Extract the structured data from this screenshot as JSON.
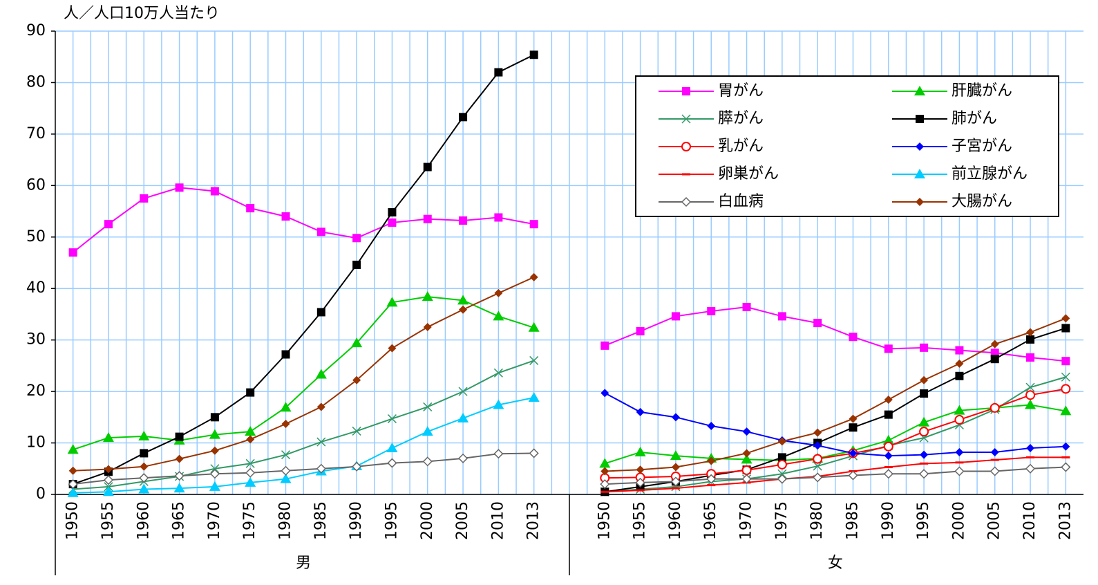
{
  "chart_data": {
    "type": "line",
    "ylabel": "人／人口10万人当たり",
    "groups": [
      "男",
      "女"
    ],
    "categories": [
      "1950",
      "1955",
      "1960",
      "1965",
      "1970",
      "1975",
      "1980",
      "1985",
      "1990",
      "1995",
      "2000",
      "2005",
      "2010",
      "2013"
    ],
    "ylim": [
      0,
      90
    ],
    "yticks": [
      0,
      10,
      20,
      30,
      40,
      50,
      60,
      70,
      80,
      90
    ],
    "grid": true,
    "legend": "top-right",
    "series": [
      {
        "name": "胃がん",
        "color": "#ff00ff",
        "marker": "square",
        "values": [
          [
            47,
            52.5,
            57.5,
            59.6,
            58.9,
            55.6,
            54,
            51,
            49.8,
            52.8,
            53.5,
            53.2,
            53.8,
            52.5
          ],
          [
            28.9,
            31.7,
            34.6,
            35.6,
            36.4,
            34.6,
            33.3,
            30.6,
            28.3,
            28.5,
            28,
            27.5,
            26.6,
            25.9
          ]
        ]
      },
      {
        "name": "肝臓がん",
        "color": "#00cc00",
        "marker": "triangle",
        "values": [
          [
            8.7,
            11,
            11.3,
            10.5,
            11.6,
            12.2,
            16.9,
            23.3,
            29.4,
            37.3,
            38.4,
            37.7,
            34.6,
            32.4
          ],
          [
            6,
            8.2,
            7.5,
            7,
            6.8,
            6.6,
            7,
            8.5,
            10.5,
            14,
            16.3,
            16.8,
            17.4,
            16.2
          ]
        ]
      },
      {
        "name": "膵がん",
        "color": "#339966",
        "marker": "x",
        "values": [
          [
            1,
            1.5,
            2.5,
            3.5,
            5,
            6,
            7.7,
            10.2,
            12.3,
            14.7,
            17,
            20,
            23.6,
            26
          ],
          [
            0.5,
            1,
            1.5,
            2.5,
            3,
            4,
            5.5,
            7.5,
            9.5,
            11,
            13.5,
            16.5,
            20.8,
            22.8
          ]
        ]
      },
      {
        "name": "肺がん",
        "color": "#000000",
        "marker": "square",
        "values": [
          [
            2,
            4.4,
            8,
            11.2,
            15,
            19.8,
            27.2,
            35.4,
            44.6,
            54.8,
            63.6,
            73.3,
            82,
            85.4
          ],
          [
            0.5,
            1.5,
            2.5,
            3.7,
            4.8,
            7.2,
            10,
            13,
            15.5,
            19.6,
            23,
            26.3,
            30.1,
            32.3
          ]
        ]
      },
      {
        "name": "乳がん",
        "color": "#ff0000",
        "marker": "circle-open",
        "values": [
          [
            null,
            null,
            null,
            null,
            null,
            null,
            null,
            null,
            null,
            null,
            null,
            null,
            null,
            null
          ],
          [
            3.2,
            3.3,
            3.5,
            4,
            4.7,
            5.8,
            6.9,
            8,
            9.3,
            12.2,
            14.5,
            16.8,
            19.3,
            20.5
          ]
        ]
      },
      {
        "name": "子宮がん",
        "color": "#0000ff",
        "marker": "diamond",
        "values": [
          [
            null,
            null,
            null,
            null,
            null,
            null,
            null,
            null,
            null,
            null,
            null,
            null,
            null,
            null
          ],
          [
            19.7,
            16,
            15,
            13.3,
            12.2,
            10.5,
            9.5,
            8,
            7.5,
            7.7,
            8.2,
            8.2,
            9,
            9.3
          ]
        ]
      },
      {
        "name": "卵巣がん",
        "color": "#ff0000",
        "marker": "dash",
        "values": [
          [
            null,
            null,
            null,
            null,
            null,
            null,
            null,
            null,
            null,
            null,
            null,
            null,
            null,
            null
          ],
          [
            0.5,
            0.8,
            1.2,
            1.8,
            2.3,
            3,
            3.5,
            4.5,
            5.3,
            6,
            6.2,
            6.7,
            7.2,
            7.2
          ]
        ]
      },
      {
        "name": "前立腺がん",
        "color": "#00ccff",
        "marker": "triangle",
        "values": [
          [
            0.3,
            0.5,
            1,
            1.2,
            1.5,
            2.3,
            3,
            4.5,
            5.5,
            9,
            12.2,
            14.8,
            17.4,
            18.8
          ],
          [
            null,
            null,
            null,
            null,
            null,
            null,
            null,
            null,
            null,
            null,
            null,
            null,
            null,
            null
          ]
        ]
      },
      {
        "name": "白血病",
        "color": "#666666",
        "marker": "diamond-open",
        "values": [
          [
            2,
            2.8,
            3.2,
            3.6,
            4,
            4.2,
            4.6,
            5,
            5.4,
            6.1,
            6.4,
            7,
            7.9,
            8
          ],
          [
            2,
            2.3,
            2.5,
            3,
            3,
            3,
            3.3,
            3.7,
            4,
            4,
            4.5,
            4.5,
            5,
            5.3
          ]
        ]
      },
      {
        "name": "大腸がん",
        "color": "#993300",
        "marker": "diamond",
        "values": [
          [
            4.6,
            4.9,
            5.4,
            6.9,
            8.5,
            10.7,
            13.7,
            17,
            22.2,
            28.4,
            32.5,
            35.9,
            39.1,
            42.2
          ],
          [
            4.5,
            4.8,
            5.3,
            6.5,
            8,
            10.3,
            12,
            14.7,
            18.4,
            22.2,
            25.4,
            29.2,
            31.5,
            34.2
          ]
        ]
      }
    ]
  }
}
